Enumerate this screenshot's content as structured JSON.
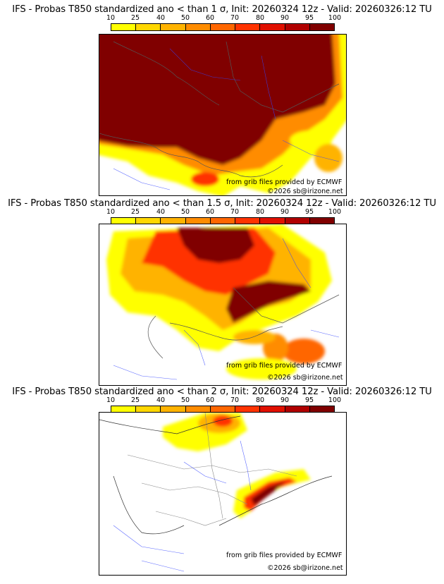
{
  "legend": {
    "ticks": [
      "10",
      "25",
      "40",
      "50",
      "60",
      "70",
      "80",
      "90",
      "95",
      "100"
    ],
    "colors": [
      "#ffff00",
      "#ffd700",
      "#ffb300",
      "#ff8c00",
      "#ff6600",
      "#ff3300",
      "#e01000",
      "#b00000",
      "#800000"
    ]
  },
  "panels": [
    {
      "title": "IFS - Probas T850  standardized ano < than 1 σ, Init: 20260324 12z - Valid: 20260326:12 TU",
      "credit_source": "from grib files provided by ECMWF",
      "credit_copyright": "©2026 sb@irizone.net"
    },
    {
      "title": "IFS - Probas T850  standardized ano < than 1.5 σ, Init: 20260324 12z - Valid: 20260326:12 TU",
      "credit_source": "from grib files provided by ECMWF",
      "credit_copyright": "©2026 sb@irizone.net"
    },
    {
      "title": "IFS - Probas T850  standardized ano < than 2 σ, Init: 20260324 12z - Valid: 20260326:12 TU",
      "credit_source": "from grib files provided by ECMWF",
      "credit_copyright": "©2026 sb@irizone.net"
    }
  ]
}
